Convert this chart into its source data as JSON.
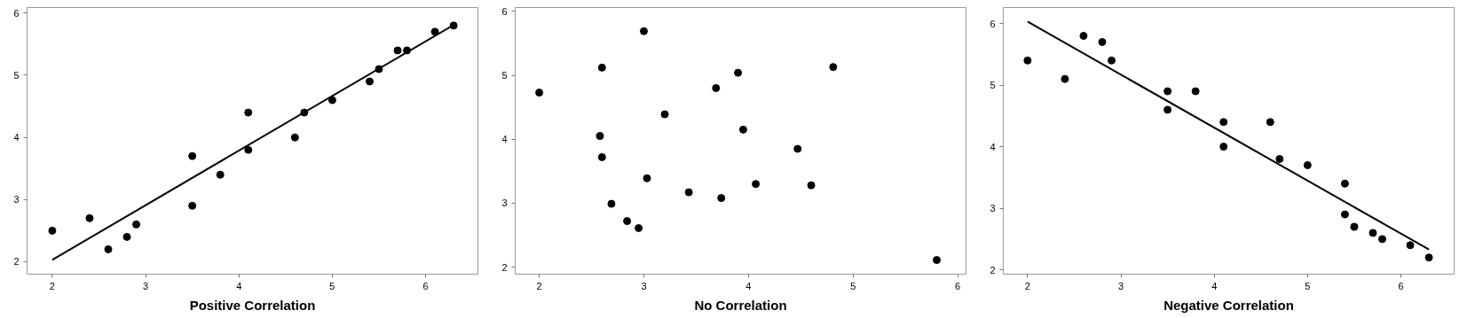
{
  "chart_data": [
    {
      "type": "scatter",
      "xlabel": "Positive Correlation",
      "xlim": [
        1.73,
        6.56
      ],
      "ylim": [
        1.8,
        6.09
      ],
      "xticks": [
        2,
        3,
        4,
        5,
        6
      ],
      "yticks": [
        2,
        3,
        4,
        5,
        6
      ],
      "grid": false,
      "series": [
        {
          "marker": "circle",
          "color": "#000000",
          "x": [
            2,
            2.4,
            2.6,
            2.8,
            2.9,
            3.5,
            3.5,
            3.8,
            4.1,
            4.1,
            4.6,
            4.7,
            5.0,
            5.4,
            5.5,
            5.7,
            5.8,
            6.1,
            6.3
          ],
          "values": [
            2.5,
            2.7,
            2.2,
            2.4,
            2.6,
            3.7,
            2.9,
            3.4,
            4.4,
            3.8,
            4.0,
            4.4,
            4.6,
            4.9,
            5.1,
            5.4,
            5.4,
            5.7,
            5.8
          ]
        },
        {
          "type": "line",
          "color": "#000000",
          "x": [
            2,
            6.3
          ],
          "values": [
            2.03,
            5.81
          ]
        }
      ]
    },
    {
      "type": "scatter",
      "xlabel": "No Correlation",
      "xlim": [
        1.77,
        6.08
      ],
      "ylim": [
        1.89,
        6.06
      ],
      "xticks": [
        2,
        3,
        4,
        5,
        6
      ],
      "yticks": [
        2,
        3,
        4,
        5,
        6
      ],
      "grid": false,
      "series": [
        {
          "marker": "circle",
          "color": "#000000",
          "x": [
            2.0,
            2.6,
            3.0,
            2.58,
            2.6,
            2.69,
            2.84,
            2.95,
            3.03,
            3.2,
            3.43,
            3.69,
            3.74,
            3.9,
            3.95,
            4.07,
            4.47,
            4.6,
            4.81,
            5.8
          ],
          "values": [
            4.73,
            5.12,
            5.69,
            4.05,
            3.72,
            2.99,
            2.72,
            2.61,
            3.39,
            4.39,
            3.17,
            4.8,
            3.08,
            5.04,
            4.15,
            3.3,
            3.85,
            3.28,
            5.13,
            2.11
          ]
        }
      ]
    },
    {
      "type": "scatter",
      "xlabel": "Negative Correlation",
      "xlim": [
        1.74,
        6.57
      ],
      "ylim": [
        1.93,
        6.26
      ],
      "xticks": [
        2,
        3,
        4,
        5,
        6
      ],
      "yticks": [
        2,
        3,
        4,
        5,
        6
      ],
      "grid": false,
      "series": [
        {
          "marker": "circle",
          "color": "#000000",
          "x": [
            2,
            2.4,
            2.6,
            2.8,
            2.9,
            3.5,
            3.5,
            3.8,
            4.1,
            4.1,
            4.6,
            4.7,
            5.0,
            5.4,
            5.4,
            5.5,
            5.7,
            5.8,
            6.1,
            6.3
          ],
          "values": [
            5.4,
            5.1,
            5.8,
            5.7,
            5.4,
            4.9,
            4.6,
            4.9,
            4.4,
            4.0,
            4.4,
            3.8,
            3.7,
            3.4,
            2.9,
            2.7,
            2.6,
            2.5,
            2.4,
            2.2
          ]
        },
        {
          "type": "line",
          "color": "#000000",
          "x": [
            2,
            6.3
          ],
          "values": [
            6.03,
            2.33
          ]
        }
      ]
    }
  ]
}
